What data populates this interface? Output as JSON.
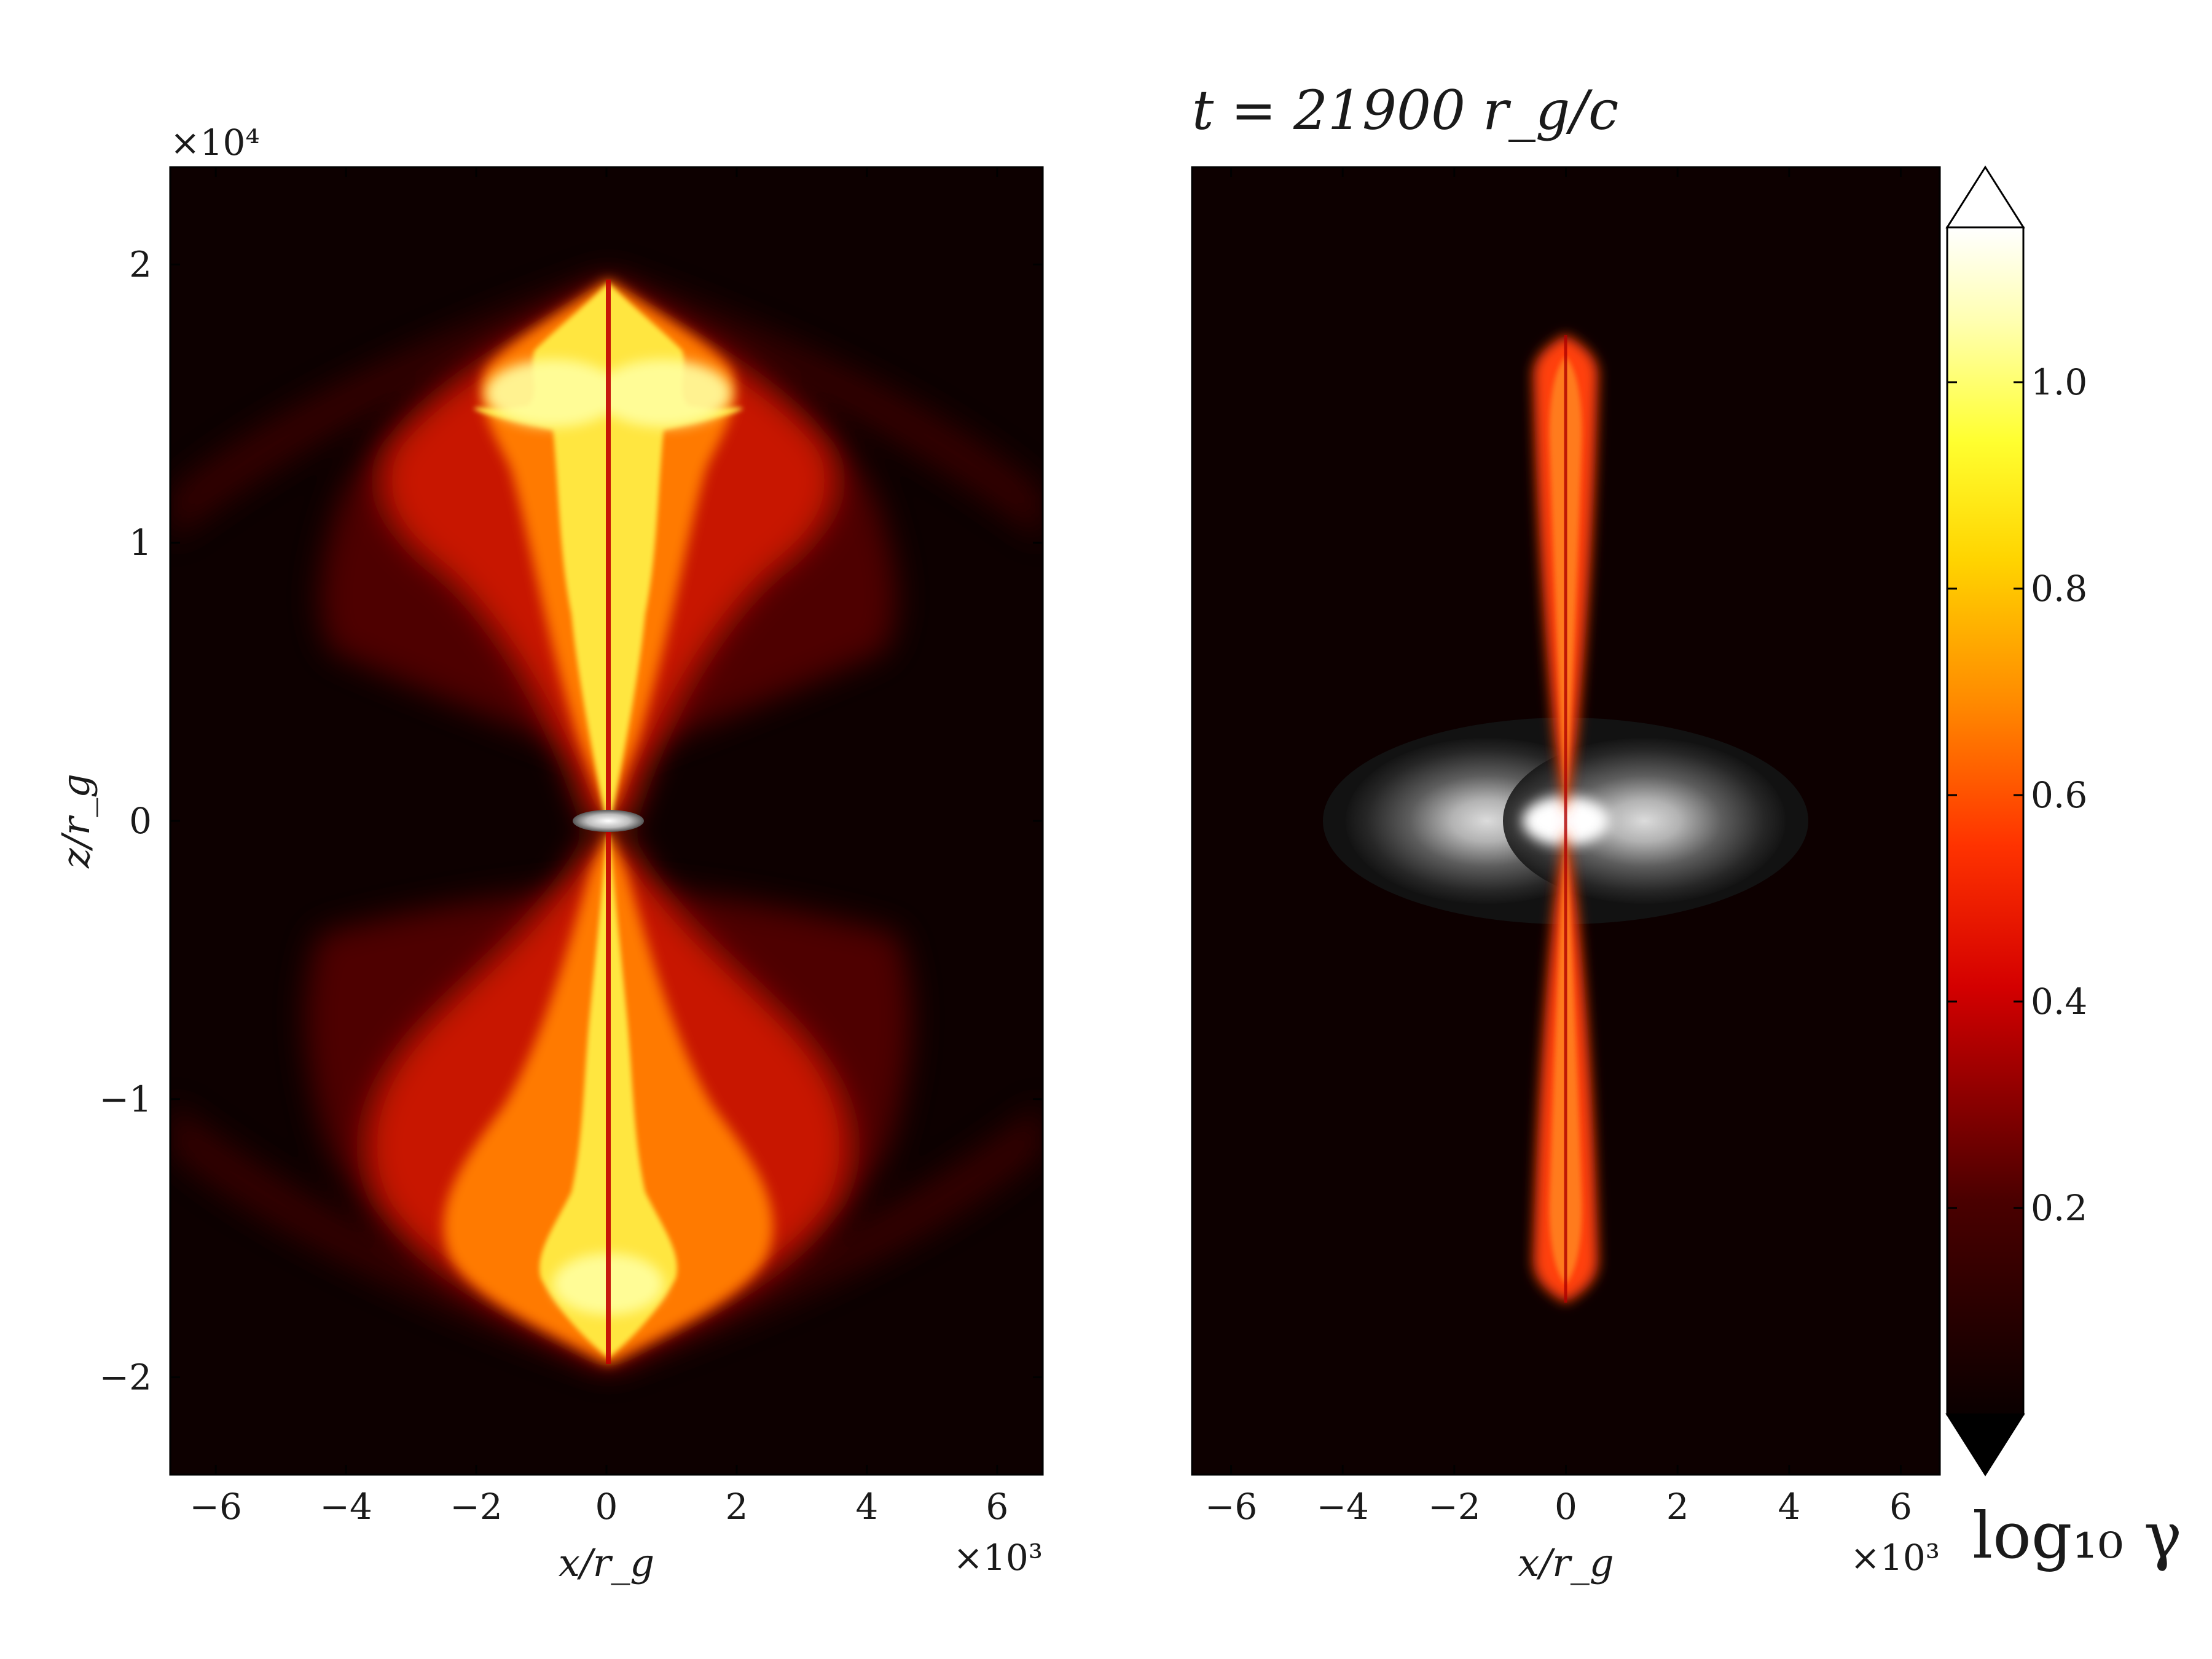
{
  "chart_data": [
    {
      "type": "heatmap",
      "panel": "left",
      "title": "",
      "xlabel": "x/r_g",
      "ylabel": "z/r_g",
      "x_multiplier": "×10³",
      "y_multiplier": "×10⁴",
      "xlim": [
        -6.7,
        6.7
      ],
      "ylim": [
        -2.35,
        2.35
      ],
      "xticks": [
        -6,
        -4,
        -2,
        0,
        2,
        4,
        6
      ],
      "yticks": [
        -2,
        -1,
        0,
        1,
        2
      ],
      "xtick_labels": [
        "−6",
        "−4",
        "−2",
        "0",
        "2",
        "4",
        "6"
      ],
      "ytick_labels": [
        "−2",
        "−1",
        "0",
        "1",
        "2"
      ]
    },
    {
      "type": "heatmap",
      "panel": "right",
      "title": "t = 21900 r_g/c",
      "xlabel": "x/r_g",
      "x_multiplier": "×10³",
      "xlim": [
        -6.7,
        6.7
      ],
      "xticks": [
        -6,
        -4,
        -2,
        0,
        2,
        4,
        6
      ],
      "xtick_labels": [
        "−6",
        "−4",
        "−2",
        "0",
        "2",
        "4",
        "6"
      ]
    }
  ],
  "colorbar": {
    "label": "log₁₀ γ",
    "colormap": "hot",
    "range": [
      0.0,
      1.15
    ],
    "ticks": [
      0.2,
      0.4,
      0.6,
      0.8,
      1.0
    ],
    "tick_labels": [
      "0.2",
      "0.4",
      "0.6",
      "0.8",
      "1.0"
    ],
    "extend": "both"
  },
  "colors": {
    "background": "#0d0000",
    "jet_core": "#ffff80",
    "cocoon": "#ff3000",
    "disk": "#ffffff"
  }
}
